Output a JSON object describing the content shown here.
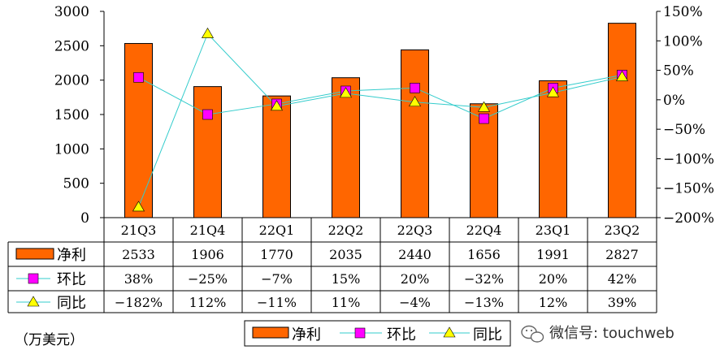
{
  "chart_data": {
    "type": "bar",
    "categories": [
      "21Q3",
      "21Q4",
      "22Q1",
      "22Q2",
      "22Q3",
      "22Q4",
      "23Q1",
      "23Q2"
    ],
    "series": [
      {
        "name": "净利",
        "kind": "bar",
        "axis": "left",
        "values": [
          2533,
          1906,
          1770,
          2035,
          2440,
          1656,
          1991,
          2827
        ],
        "labels": [
          "2533",
          "1906",
          "1770",
          "2035",
          "2440",
          "1656",
          "1991",
          "2827"
        ]
      },
      {
        "name": "环比",
        "kind": "line",
        "axis": "right",
        "values": [
          38,
          -25,
          -7,
          15,
          20,
          -32,
          20,
          42
        ],
        "labels": [
          "38%",
          "-25%",
          "-7%",
          "15%",
          "20%",
          "-32%",
          "20%",
          "42%"
        ]
      },
      {
        "name": "同比",
        "kind": "line",
        "axis": "right",
        "values": [
          -182,
          112,
          -11,
          11,
          -4,
          -13,
          12,
          39
        ],
        "labels": [
          "-182%",
          "112%",
          "-11%",
          "11%",
          "-4%",
          "-13%",
          "12%",
          "39%"
        ]
      }
    ],
    "y_left": {
      "min": 0,
      "max": 3000,
      "ticks": [
        "0",
        "500",
        "1000",
        "1500",
        "2000",
        "2500",
        "3000"
      ]
    },
    "y_right": {
      "min": -200,
      "max": 150,
      "ticks": [
        "-200%",
        "-150%",
        "-100%",
        "-50%",
        "0%",
        "50%",
        "100%",
        "150%"
      ]
    },
    "unit_label": "（万美元）",
    "legend_position": "bottom",
    "grid": false
  },
  "colors": {
    "bar": "#ff6600",
    "bar_edge": "#000000",
    "qoq": "#ff00ff",
    "yoy": "#ffff00",
    "line": "#33cccc"
  },
  "watermark": {
    "icon": "wechat-icon",
    "text": "微信号: touchweb"
  }
}
